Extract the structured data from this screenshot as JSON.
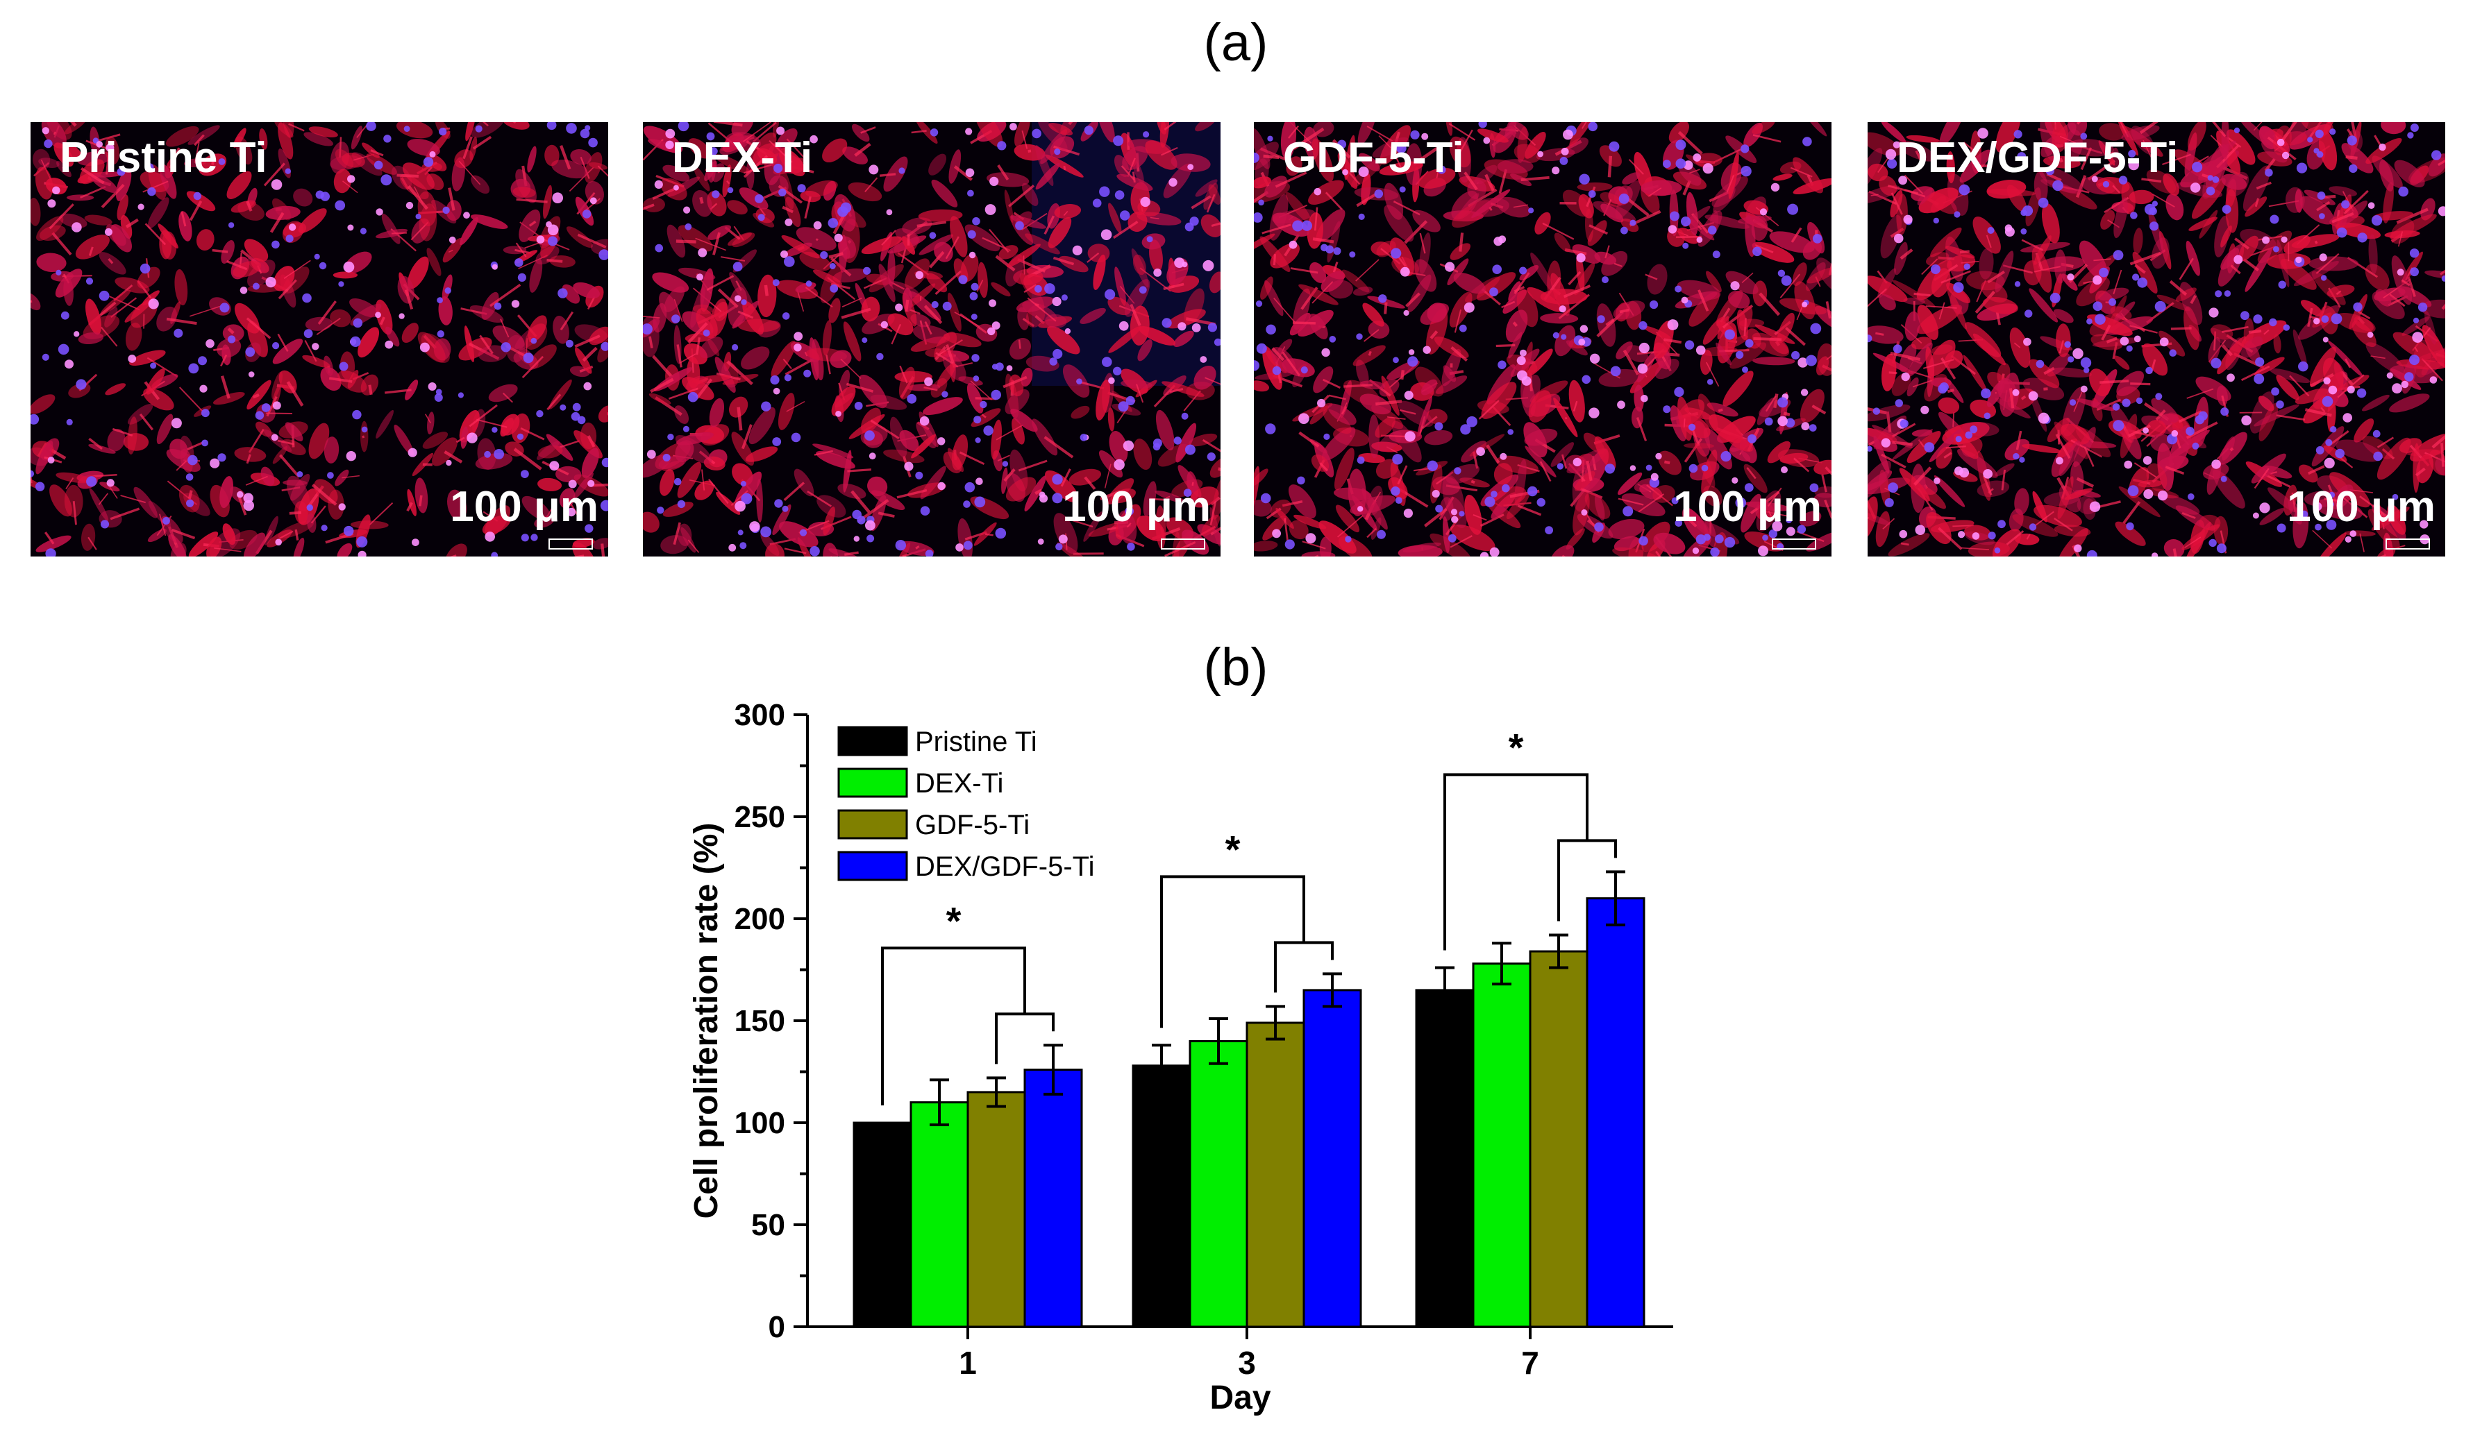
{
  "panel_a": {
    "label": "(a)",
    "images": [
      {
        "label": "Pristine Ti",
        "scale": "100 μm",
        "density": 0.55
      },
      {
        "label": "DEX-Ti",
        "scale": "100 μm",
        "density": 0.72
      },
      {
        "label": "GDF-5-Ti",
        "scale": "100 μm",
        "density": 0.8
      },
      {
        "label": "DEX/GDF-5-Ti",
        "scale": "100 μm",
        "density": 0.9
      }
    ]
  },
  "chart_data": {
    "type": "bar",
    "panel_label": "(b)",
    "xlabel": "Day",
    "ylabel": "Cell proliferation rate (%)",
    "ylim": [
      0,
      300
    ],
    "yticks": [
      "0",
      "50",
      "100",
      "150",
      "200",
      "250",
      "300"
    ],
    "categories": [
      "1",
      "3",
      "7"
    ],
    "series": [
      {
        "name": "Pristine Ti",
        "color": "#000000",
        "values": [
          100,
          128,
          165
        ],
        "errors": [
          0,
          10,
          11
        ]
      },
      {
        "name": "DEX-Ti",
        "color": "#00ee00",
        "values": [
          110,
          140,
          178
        ],
        "errors": [
          11,
          11,
          10
        ]
      },
      {
        "name": "GDF-5-Ti",
        "color": "#808000",
        "values": [
          115,
          149,
          184
        ],
        "errors": [
          7,
          8,
          8
        ]
      },
      {
        "name": "DEX/GDF-5-Ti",
        "color": "#0000ff",
        "values": [
          126,
          165,
          210
        ],
        "errors": [
          12,
          8,
          13
        ]
      }
    ],
    "significance": [
      {
        "category": "1",
        "marker": "*"
      },
      {
        "category": "3",
        "marker": "*"
      },
      {
        "category": "7",
        "marker": "*"
      }
    ]
  }
}
